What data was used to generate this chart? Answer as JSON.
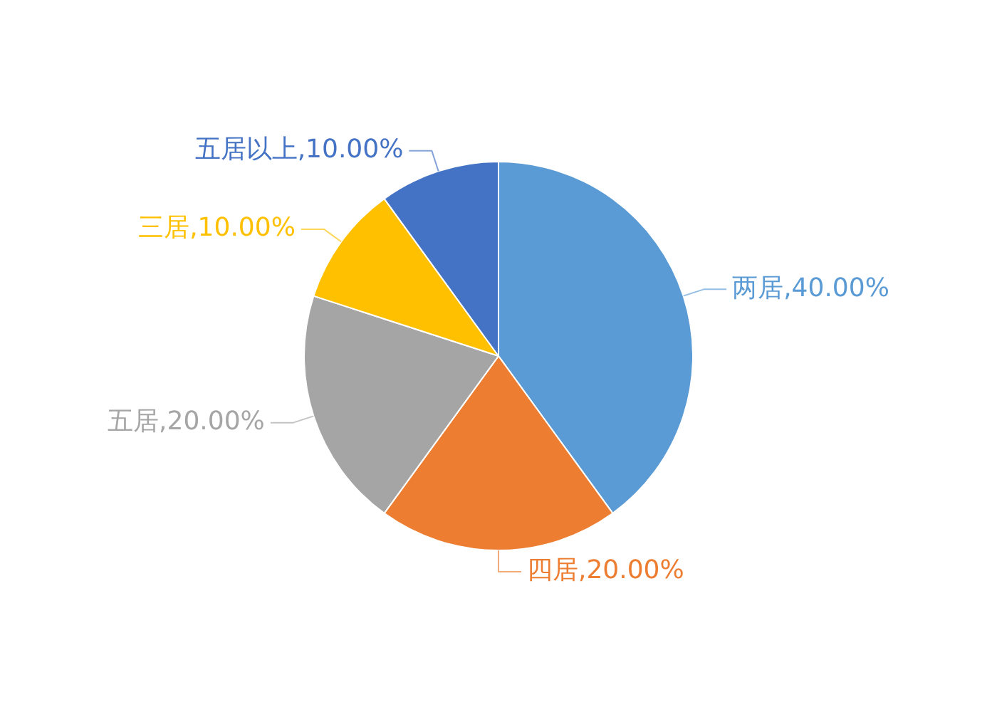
{
  "chart_data": {
    "type": "pie",
    "categories": [
      "两居",
      "四居",
      "五居",
      "三居",
      "五居以上"
    ],
    "values": [
      40,
      20,
      20,
      10,
      10
    ],
    "colors": [
      "#5b9bd5",
      "#ed7d31",
      "#a5a5a5",
      "#ffc000",
      "#4472c4"
    ],
    "value_labels": [
      "40.00%",
      "20.00%",
      "20.00%",
      "10.00%",
      "10.00%"
    ]
  }
}
